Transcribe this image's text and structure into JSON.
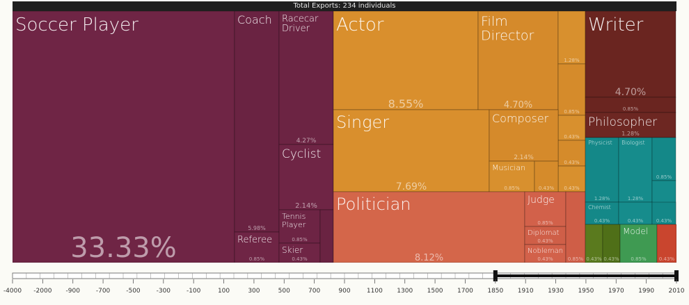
{
  "header": {
    "title": "Total Exports: 234 individuals"
  },
  "chart_data": {
    "type": "treemap",
    "title": "Total Exports: 234 individuals",
    "colors": {
      "sports": "#6f2545",
      "arts": "#d98f2d",
      "government": "#d4664a",
      "humanities": "#6a2520",
      "science": "#158a8a",
      "health": "#5a7a1e",
      "other": "#3f9a52",
      "misc": "#c9452e"
    },
    "tiles": [
      {
        "id": "soccer",
        "label": "Soccer Player",
        "pct": "33.33%",
        "group": "sports"
      },
      {
        "id": "coach",
        "label": "Coach",
        "pct": "5.98%",
        "group": "sports"
      },
      {
        "id": "referee",
        "label": "Referee",
        "pct": "0.85%",
        "group": "sports"
      },
      {
        "id": "racecar",
        "label": "Racecar Driver",
        "pct": "4.27%",
        "group": "sports"
      },
      {
        "id": "cyclist",
        "label": "Cyclist",
        "pct": "2.14%",
        "group": "sports"
      },
      {
        "id": "tennis",
        "label": "Tennis Player",
        "pct": "0.85%",
        "group": "sports"
      },
      {
        "id": "skier",
        "label": "Skier",
        "pct": "0.43%",
        "group": "sports"
      },
      {
        "id": "sports_small",
        "label": "",
        "pct": "",
        "group": "sports"
      },
      {
        "id": "actor",
        "label": "Actor",
        "pct": "8.55%",
        "group": "arts"
      },
      {
        "id": "filmdir",
        "label": "Film Director",
        "pct": "4.70%",
        "group": "arts"
      },
      {
        "id": "arts_a",
        "label": "",
        "pct": "1.28%",
        "group": "arts"
      },
      {
        "id": "arts_b",
        "label": "",
        "pct": "0.85%",
        "group": "arts"
      },
      {
        "id": "arts_c",
        "label": "",
        "pct": "0.43%",
        "group": "arts"
      },
      {
        "id": "arts_d",
        "label": "",
        "pct": "0.43%",
        "group": "arts"
      },
      {
        "id": "arts_e",
        "label": "",
        "pct": "0.43%",
        "group": "arts"
      },
      {
        "id": "singer",
        "label": "Singer",
        "pct": "7.69%",
        "group": "arts"
      },
      {
        "id": "composer",
        "label": "Composer",
        "pct": "2.14%",
        "group": "arts"
      },
      {
        "id": "musician",
        "label": "Musician",
        "pct": "0.85%",
        "group": "arts"
      },
      {
        "id": "arts_f",
        "label": "",
        "pct": "0.43%",
        "group": "arts"
      },
      {
        "id": "politician",
        "label": "Politician",
        "pct": "8.12%",
        "group": "government"
      },
      {
        "id": "judge",
        "label": "Judge",
        "pct": "0.85%",
        "group": "government"
      },
      {
        "id": "diplomat",
        "label": "Diplomat",
        "pct": "0.43%",
        "group": "government"
      },
      {
        "id": "nobleman",
        "label": "Nobleman",
        "pct": "0.43%",
        "group": "government"
      },
      {
        "id": "gov_a",
        "label": "",
        "pct": "0.85%",
        "group": "government"
      },
      {
        "id": "writer",
        "label": "Writer",
        "pct": "4.70%",
        "group": "humanities"
      },
      {
        "id": "hum_a",
        "label": "",
        "pct": "0.85%",
        "group": "humanities"
      },
      {
        "id": "philosopher",
        "label": "Philosopher",
        "pct": "1.28%",
        "group": "humanities"
      },
      {
        "id": "physicist",
        "label": "Physicist",
        "pct": "1.28%",
        "group": "science"
      },
      {
        "id": "biologist",
        "label": "Biologist",
        "pct": "1.28%",
        "group": "science"
      },
      {
        "id": "sci_a",
        "label": "",
        "pct": "0.85%",
        "group": "science"
      },
      {
        "id": "sci_b",
        "label": "",
        "pct": "",
        "group": "science"
      },
      {
        "id": "chemist",
        "label": "Chemist",
        "pct": "0.43%",
        "group": "science"
      },
      {
        "id": "sci_c",
        "label": "",
        "pct": "0.43%",
        "group": "science"
      },
      {
        "id": "sci_d",
        "label": "",
        "pct": "0.43%",
        "group": "science"
      },
      {
        "id": "health_a",
        "label": "",
        "pct": "0.43%",
        "group": "health"
      },
      {
        "id": "health_b",
        "label": "",
        "pct": "0.43%",
        "group": "health"
      },
      {
        "id": "model",
        "label": "Model",
        "pct": "0.85%",
        "group": "other"
      },
      {
        "id": "misc_a",
        "label": "",
        "pct": "0.43%",
        "group": "misc"
      }
    ],
    "timeline": {
      "ticks": [
        "-4000",
        "-2000",
        "-900",
        "-700",
        "-500",
        "-300",
        "-100",
        "100",
        "300",
        "500",
        "700",
        "900",
        "1100",
        "1300",
        "1500",
        "1700",
        "1850",
        "1910",
        "1930",
        "1950",
        "1970",
        "1990",
        "2010"
      ],
      "selected_range": [
        "1850",
        "2010"
      ]
    }
  }
}
